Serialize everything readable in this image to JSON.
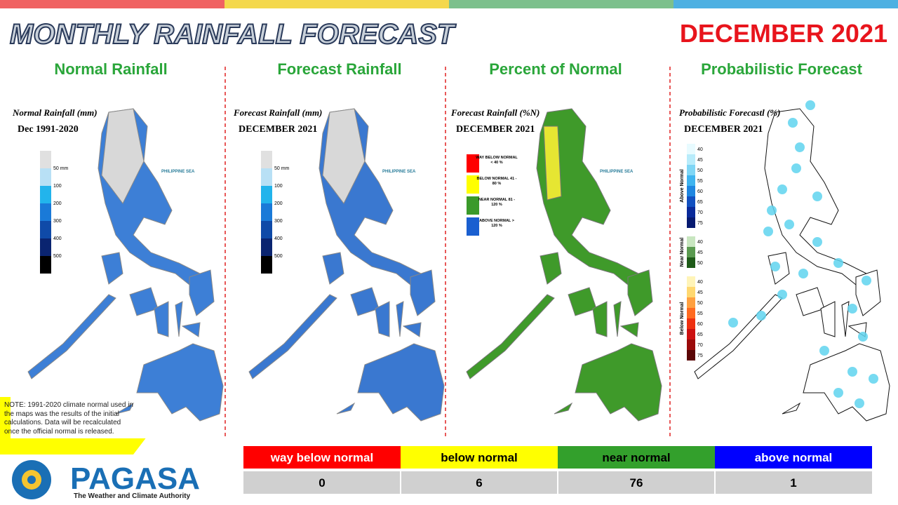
{
  "header": {
    "title": "MONTHLY RAINFALL FORECAST",
    "period": "DECEMBER 2021"
  },
  "panels": [
    {
      "heading": "Normal Rainfall",
      "map_title": "Normal Rainfall (mm)",
      "map_subtitle": "Dec 1991-2020",
      "legend": [
        "50 mm",
        "100",
        "200",
        "300",
        "400",
        "500"
      ]
    },
    {
      "heading": "Forecast Rainfall",
      "map_title": "Forecast Rainfall (mm)",
      "map_subtitle": "DECEMBER 2021",
      "legend": [
        "50 mm",
        "100",
        "200",
        "300",
        "400",
        "500"
      ]
    },
    {
      "heading": "Percent of Normal",
      "map_title": "Forecast Rainfall (%N)",
      "map_subtitle": "DECEMBER 2021",
      "legend": [
        "WAY BELOW NORMAL < 40 %",
        "BELOW NORMAL 41 - 80 %",
        "NEAR NORMAL 81 - 120 %",
        "ABOVE NORMAL > 120 %"
      ]
    },
    {
      "heading": "Probabilistic Forecast",
      "map_title": "Probabilistic Forecastl (%)",
      "map_subtitle": "DECEMBER 2021",
      "legend_groups": [
        {
          "label": "Above Normal",
          "values": [
            40,
            45,
            50,
            55,
            60,
            65,
            70,
            75
          ]
        },
        {
          "label": "Near Normal",
          "values": [
            40,
            45,
            50
          ]
        },
        {
          "label": "Below Normal",
          "values": [
            40,
            45,
            50,
            55,
            60,
            65,
            70,
            75
          ]
        }
      ]
    }
  ],
  "sea_label": "PHILIPPINE SEA",
  "note": "NOTE: 1991-2020 climate normal used in the maps was the results of the initial calculations. Data will be recalculated once the official normal is released.",
  "summary_table": {
    "headers": [
      "way below normal",
      "below normal",
      "near normal",
      "above normal"
    ],
    "counts": [
      0,
      6,
      76,
      1
    ]
  },
  "logo": {
    "name": "PAGASA",
    "tagline": "The Weather and Climate Authority"
  }
}
